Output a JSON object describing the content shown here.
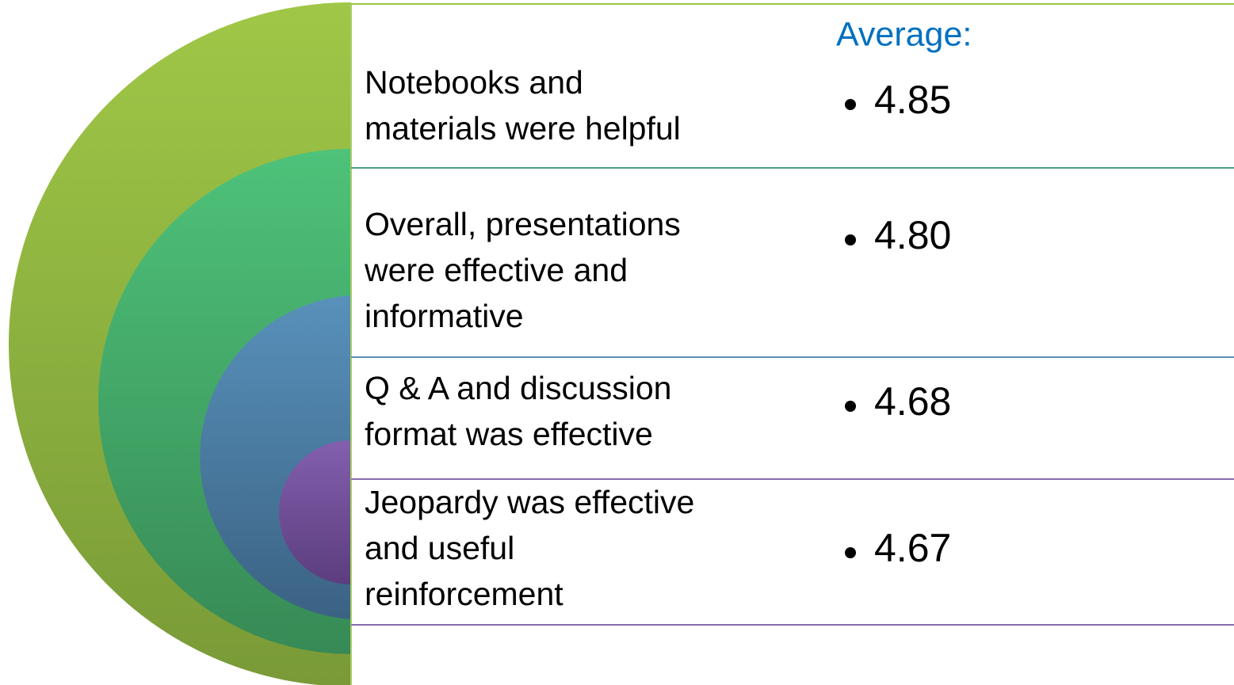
{
  "heading": "Average:",
  "items": [
    {
      "label_lines": [
        "Notebooks and",
        "materials were helpful"
      ],
      "value": "4.85"
    },
    {
      "label_lines": [
        "Overall, presentations",
        "were effective and",
        "informative"
      ],
      "value": "4.80"
    },
    {
      "label_lines": [
        "Q & A and discussion",
        "format was effective"
      ],
      "value": "4.68"
    },
    {
      "label_lines": [
        "Jeopardy was effective",
        "and useful",
        "reinforcement"
      ],
      "value": "4.67"
    }
  ]
}
